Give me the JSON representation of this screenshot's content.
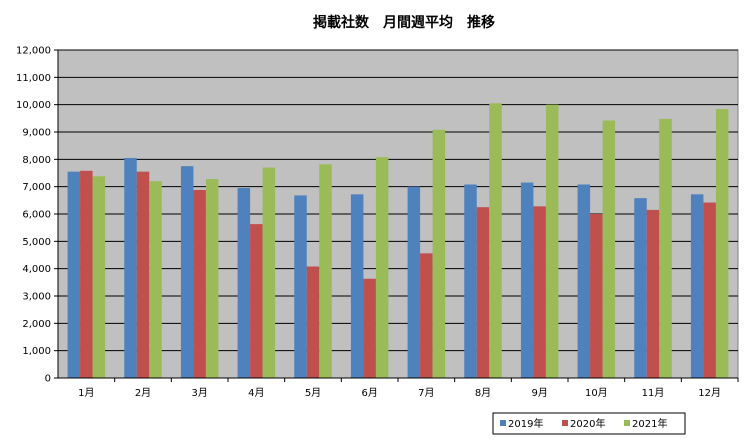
{
  "chart_data": {
    "type": "bar",
    "title": "掲載社数　月間週平均　推移",
    "categories": [
      "1月",
      "2月",
      "3月",
      "4月",
      "5月",
      "6月",
      "7月",
      "8月",
      "9月",
      "10月",
      "11月",
      "12月"
    ],
    "ylim": [
      0,
      12000
    ],
    "yticks": [
      "0",
      "1,000",
      "2,000",
      "3,000",
      "4,000",
      "5,000",
      "6,000",
      "7,000",
      "8,000",
      "9,000",
      "10,000",
      "11,000",
      "12,000"
    ],
    "grid": true,
    "legend_position": "bottom-right",
    "series": [
      {
        "name": "2019年",
        "color": "#4f81bd",
        "values": [
          7550,
          8050,
          7750,
          6950,
          6680,
          6720,
          7000,
          7080,
          7150,
          7080,
          6580,
          6720
        ]
      },
      {
        "name": "2020年",
        "color": "#c0504d",
        "values": [
          7580,
          7550,
          6880,
          5630,
          4080,
          3630,
          4560,
          6250,
          6280,
          6000,
          6150,
          6420
        ]
      },
      {
        "name": "2021年",
        "color": "#9bbb59",
        "values": [
          7380,
          7200,
          7280,
          7700,
          7820,
          8080,
          9080,
          10050,
          10000,
          9420,
          9480,
          9840
        ]
      }
    ]
  }
}
